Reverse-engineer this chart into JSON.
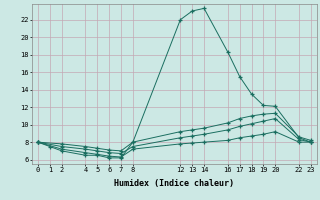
{
  "xlabel": "Humidex (Indice chaleur)",
  "bg_color": "#cce8e4",
  "grid_color": "#c4a8b4",
  "line_color": "#1a6e60",
  "line1_x": [
    0,
    1,
    2,
    4,
    5,
    6,
    7,
    8,
    12,
    13,
    14,
    16,
    17,
    18,
    19,
    20,
    22,
    23
  ],
  "line1_y": [
    8,
    7.5,
    7.0,
    6.5,
    6.5,
    6.2,
    6.2,
    8.0,
    22,
    23,
    23.3,
    18.3,
    15.5,
    13.5,
    12.2,
    12.1,
    8.5,
    8.0
  ],
  "line2_x": [
    0,
    2,
    4,
    5,
    6,
    7,
    8,
    12,
    13,
    14,
    16,
    17,
    18,
    19,
    20,
    22,
    23
  ],
  "line2_y": [
    8,
    7.8,
    7.5,
    7.3,
    7.1,
    7.0,
    8.0,
    9.2,
    9.4,
    9.6,
    10.2,
    10.7,
    11.0,
    11.2,
    11.3,
    8.6,
    8.2
  ],
  "line3_x": [
    0,
    2,
    4,
    5,
    6,
    7,
    8,
    12,
    13,
    14,
    16,
    17,
    18,
    19,
    20,
    22,
    23
  ],
  "line3_y": [
    8,
    7.5,
    7.2,
    7.0,
    6.8,
    6.7,
    7.5,
    8.5,
    8.7,
    8.9,
    9.4,
    9.8,
    10.1,
    10.4,
    10.7,
    8.3,
    8.0
  ],
  "line4_x": [
    0,
    2,
    4,
    5,
    6,
    7,
    8,
    12,
    13,
    14,
    16,
    17,
    18,
    19,
    20,
    22,
    23
  ],
  "line4_y": [
    8,
    7.2,
    6.8,
    6.6,
    6.4,
    6.3,
    7.2,
    7.8,
    7.9,
    8.0,
    8.2,
    8.5,
    8.7,
    8.9,
    9.2,
    8.0,
    8.0
  ],
  "xticks": [
    0,
    1,
    2,
    4,
    5,
    6,
    7,
    8,
    12,
    13,
    14,
    16,
    17,
    18,
    19,
    20,
    22,
    23
  ],
  "yticks": [
    6,
    8,
    10,
    12,
    14,
    16,
    18,
    20,
    22
  ],
  "xlim": [
    -0.5,
    23.5
  ],
  "ylim": [
    5.5,
    23.8
  ]
}
